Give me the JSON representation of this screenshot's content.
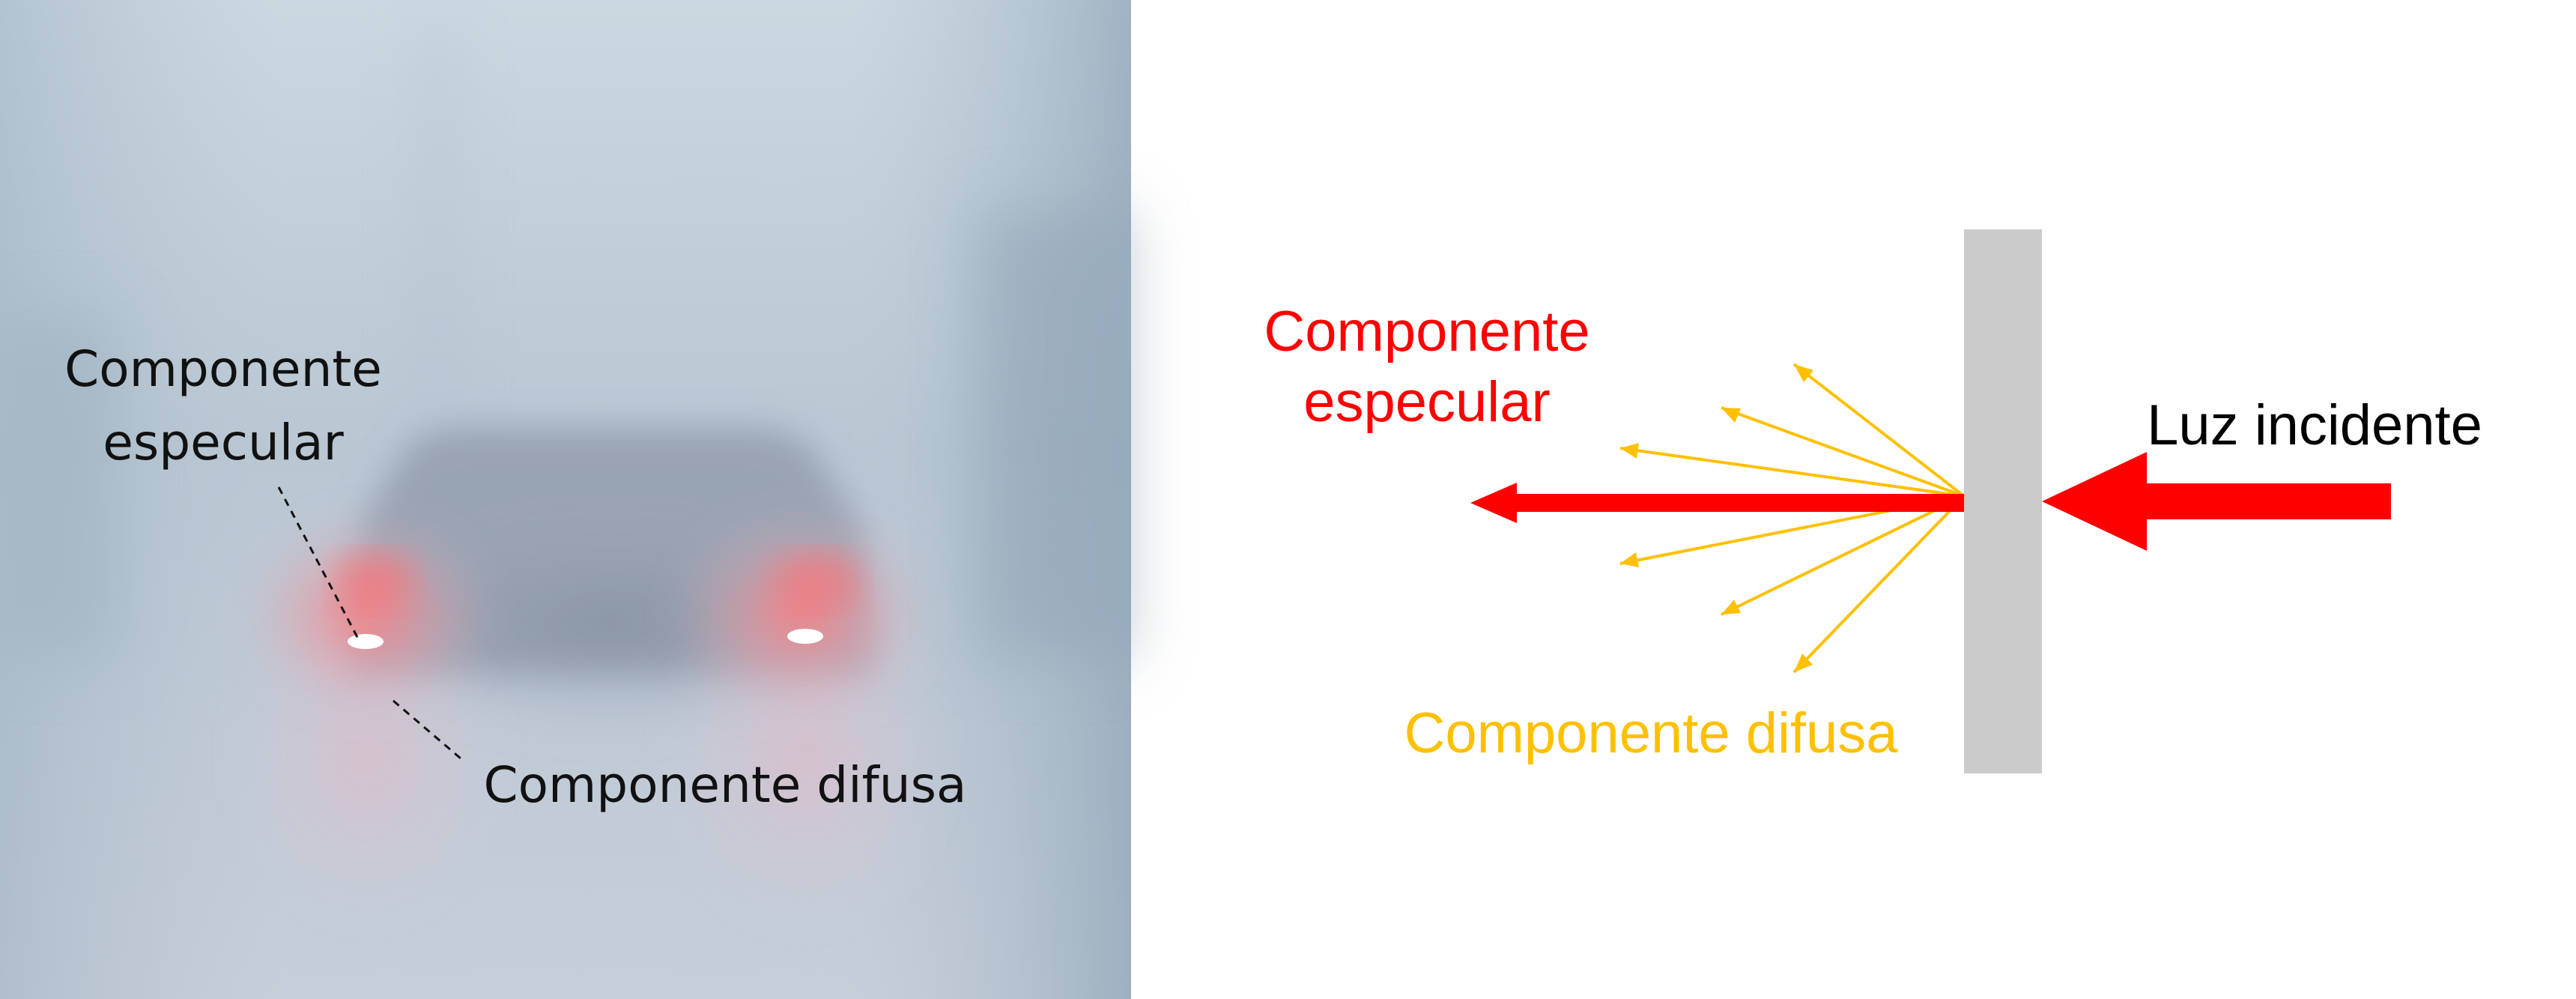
{
  "photo": {
    "description_icon": "foggy-road-car-taillights-photo",
    "labels": {
      "specular_line1": "Componente",
      "specular_line2": "especular",
      "diffuse": "Componente difusa"
    }
  },
  "diagram": {
    "labels": {
      "specular_line1": "Componente",
      "specular_line2": "especular",
      "diffuse": "Componente difusa",
      "incident": "Luz incidente"
    },
    "colors": {
      "specular": "#ff0000",
      "diffuse": "#ffc000",
      "incident_arrow": "#ff0000",
      "surface": "#cbcbcb",
      "incident_text": "#000000"
    }
  }
}
